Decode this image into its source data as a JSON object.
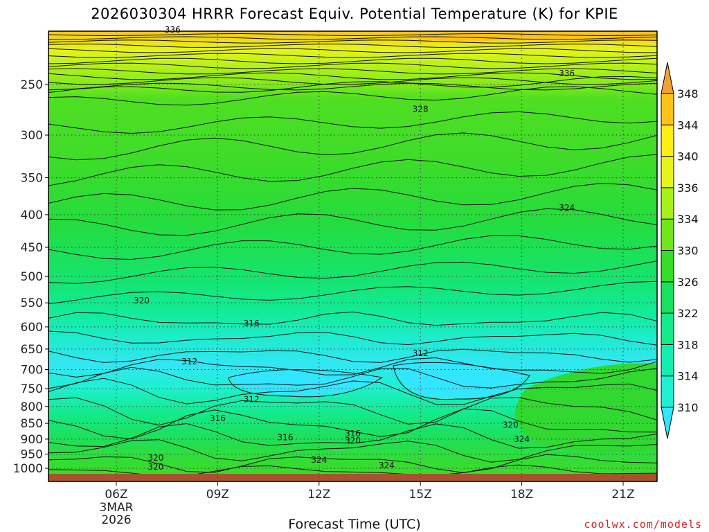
{
  "title": "2026030304 HRRR Forecast Equiv. Potential Temperature (K) for KPIE",
  "watermark": "coolwx.com/models",
  "chart_data": {
    "type": "heatmap",
    "title": "2026030304 HRRR Forecast Equiv. Potential Temperature (K) for KPIE",
    "xlabel": "Forecast Time (UTC)",
    "ylabel": "",
    "x_ticks": [
      "06Z",
      "09Z",
      "12Z",
      "15Z",
      "18Z",
      "21Z"
    ],
    "x_date_label": [
      "3MAR",
      "2026"
    ],
    "y_ticks": [
      250,
      300,
      350,
      400,
      450,
      500,
      550,
      600,
      650,
      700,
      750,
      800,
      850,
      900,
      950,
      1000
    ],
    "colorbar_ticks": [
      310,
      314,
      318,
      322,
      326,
      330,
      334,
      336,
      340,
      344,
      348
    ],
    "colorbar_colors": [
      "#33e6ff",
      "#1ff0d2",
      "#15eeb0",
      "#14ea8a",
      "#19e15e",
      "#35dc28",
      "#70e61a",
      "#a9f01a",
      "#e6f41b",
      "#ffee14",
      "#ffc216",
      "#f0a232"
    ],
    "contour_labels": [
      {
        "text": "336",
        "time": "07:40Z",
        "pressure": 205
      },
      {
        "text": "336",
        "time": "19:20Z",
        "pressure": 240
      },
      {
        "text": "328",
        "time": "15:00Z",
        "pressure": 273
      },
      {
        "text": "324",
        "time": "19:20Z",
        "pressure": 390
      },
      {
        "text": "320",
        "time": "06:45Z",
        "pressure": 546
      },
      {
        "text": "316",
        "time": "10:00Z",
        "pressure": 593
      },
      {
        "text": "312",
        "time": "08:10Z",
        "pressure": 680
      },
      {
        "text": "312",
        "time": "15:00Z",
        "pressure": 660
      },
      {
        "text": "312",
        "time": "10:00Z",
        "pressure": 780
      },
      {
        "text": "316",
        "time": "09:00Z",
        "pressure": 835
      },
      {
        "text": "316",
        "time": "11:00Z",
        "pressure": 895
      },
      {
        "text": "316",
        "time": "13:00Z",
        "pressure": 882
      },
      {
        "text": "320",
        "time": "13:00Z",
        "pressure": 905
      },
      {
        "text": "320",
        "time": "17:40Z",
        "pressure": 855
      },
      {
        "text": "324",
        "time": "18:00Z",
        "pressure": 900
      },
      {
        "text": "320",
        "time": "07:10Z",
        "pressure": 963
      },
      {
        "text": "324",
        "time": "12:00Z",
        "pressure": 970
      },
      {
        "text": "324",
        "time": "14:00Z",
        "pressure": 990
      },
      {
        "text": "320",
        "time": "07:10Z",
        "pressure": 995
      }
    ]
  }
}
